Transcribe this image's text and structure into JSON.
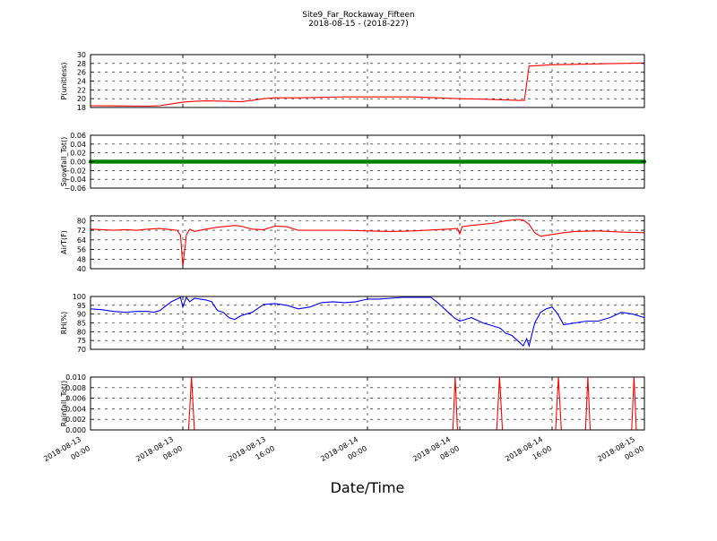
{
  "header": {
    "title": "Site9_Far_Rockaway_Fifteen",
    "subtitle": "2018-08-15 - (2018-227)"
  },
  "xaxis": {
    "label": "Date/Time",
    "ticks": [
      {
        "t": 0,
        "line1": "2018-08-13",
        "line2": "00:00"
      },
      {
        "t": 8,
        "line1": "2018-08-13",
        "line2": "08:00"
      },
      {
        "t": 16,
        "line1": "2018-08-13",
        "line2": "16:00"
      },
      {
        "t": 24,
        "line1": "2018-08-14",
        "line2": "00:00"
      },
      {
        "t": 32,
        "line1": "2018-08-14",
        "line2": "08:00"
      },
      {
        "t": 40,
        "line1": "2018-08-14",
        "line2": "16:00"
      },
      {
        "t": 48,
        "line1": "2018-08-15",
        "line2": "00:00"
      }
    ]
  },
  "chart_data": [
    {
      "type": "line",
      "ylabel": "P(unitless)",
      "ylim": [
        18,
        30
      ],
      "yticks": [
        "18",
        "20",
        "22",
        "24",
        "26",
        "28",
        "30"
      ],
      "ytick_values": [
        18,
        20,
        22,
        24,
        26,
        28,
        30
      ],
      "xlim_hours": [
        0,
        48
      ],
      "grid": true,
      "series": [
        {
          "color": "#ff0000",
          "x": [
            0,
            5,
            6,
            7,
            8,
            9,
            10,
            12,
            13,
            14,
            15,
            16,
            18,
            20,
            22,
            24,
            26,
            28,
            29,
            30,
            32,
            34,
            36,
            37,
            37.6,
            38,
            40,
            44,
            48
          ],
          "y": [
            18.4,
            18.3,
            18.4,
            18.8,
            19.2,
            19.4,
            19.5,
            19.4,
            19.3,
            19.6,
            20.0,
            20.2,
            20.2,
            20.3,
            20.4,
            20.4,
            20.4,
            20.4,
            20.3,
            20.2,
            20.0,
            19.9,
            19.7,
            19.6,
            19.6,
            27.4,
            27.7,
            27.9,
            28.1
          ]
        }
      ]
    },
    {
      "type": "scatter",
      "ylabel": "Snowfall_Tot()",
      "ylim": [
        -0.06,
        0.06
      ],
      "yticks": [
        "−0.06",
        "−0.04",
        "−0.02",
        "0.00",
        "0.02",
        "0.04",
        "0.06"
      ],
      "ytick_values": [
        -0.06,
        -0.04,
        -0.02,
        0,
        0.02,
        0.04,
        0.06
      ],
      "xlim_hours": [
        0,
        48
      ],
      "grid": true,
      "series": [
        {
          "color": "#008000",
          "x_start": 0,
          "x_end": 48,
          "x_step": 0.1,
          "constant_y": 0
        }
      ]
    },
    {
      "type": "line",
      "ylabel": "AirT(F)",
      "ylim": [
        40,
        84
      ],
      "yticks": [
        "40",
        "48",
        "56",
        "64",
        "72",
        "80"
      ],
      "ytick_values": [
        40,
        48,
        56,
        64,
        72,
        80
      ],
      "xlim_hours": [
        0,
        48
      ],
      "grid": true,
      "series": [
        {
          "color": "#ff0000",
          "x": [
            0,
            1,
            2,
            3,
            4,
            5,
            6,
            7,
            7.5,
            7.8,
            8.0,
            8.3,
            8.6,
            9,
            10,
            11,
            12,
            12.5,
            13,
            14,
            15,
            15.5,
            16,
            17,
            18,
            20,
            22,
            24,
            26,
            28,
            30,
            31,
            31.8,
            32,
            32.2,
            33,
            34,
            35,
            36,
            37,
            37.5,
            38,
            38.5,
            39,
            40,
            41,
            42,
            44,
            46,
            48
          ],
          "y": [
            73,
            72.5,
            72,
            72.5,
            72,
            73,
            73.5,
            72.5,
            72,
            68,
            42,
            68,
            73,
            71,
            73,
            74.5,
            75.5,
            76,
            75.5,
            73,
            72.5,
            74,
            75.5,
            75,
            72,
            72,
            72,
            71.5,
            71,
            71.5,
            72.5,
            73,
            73.5,
            69,
            75,
            76,
            77,
            78,
            80,
            81,
            80.5,
            77,
            70,
            67,
            68.5,
            70,
            71,
            71.5,
            70.5,
            70
          ]
        }
      ]
    },
    {
      "type": "line",
      "ylabel": "RH(%)",
      "ylim": [
        70,
        100
      ],
      "yticks": [
        "70",
        "75",
        "80",
        "85",
        "90",
        "95",
        "100"
      ],
      "ytick_values": [
        70,
        75,
        80,
        85,
        90,
        95,
        100
      ],
      "xlim_hours": [
        0,
        48
      ],
      "grid": true,
      "series": [
        {
          "color": "#0000ff",
          "x": [
            0,
            1,
            2,
            3,
            4,
            5,
            5.5,
            6,
            7,
            7.8,
            8.0,
            8.3,
            8.6,
            9,
            10,
            10.5,
            11,
            11.5,
            12,
            12.5,
            13,
            14,
            15,
            16,
            17,
            18,
            19,
            20,
            21,
            22,
            23,
            24,
            25,
            26,
            27,
            28,
            29,
            29.5,
            30,
            31,
            31.5,
            32,
            32.5,
            33,
            34,
            35,
            35.5,
            36,
            36.5,
            37,
            37.5,
            37.8,
            38,
            38.5,
            39,
            39.5,
            40,
            40.5,
            41,
            42,
            43,
            44,
            45,
            46,
            47,
            48
          ],
          "y": [
            93,
            92.5,
            91.5,
            91,
            91.5,
            91.5,
            91,
            92,
            97,
            99.5,
            94,
            99.5,
            97,
            99,
            98,
            97,
            92,
            91,
            88,
            87,
            89,
            91,
            95.5,
            96,
            95,
            93,
            94,
            96.5,
            97,
            96.5,
            97,
            98.5,
            98.5,
            99,
            99.5,
            99.5,
            99.5,
            99.5,
            97,
            91,
            88,
            86,
            87,
            88,
            85,
            83,
            82,
            79,
            78,
            75,
            72,
            76,
            72,
            85,
            91,
            93,
            94,
            90,
            84,
            85,
            86,
            86,
            88,
            91,
            90,
            88
          ]
        }
      ]
    },
    {
      "type": "line",
      "ylabel": "Rainfall_Tot()",
      "ylim": [
        0,
        0.01
      ],
      "yticks": [
        "0.000",
        "0.002",
        "0.004",
        "0.006",
        "0.008",
        "0.010"
      ],
      "ytick_values": [
        0,
        0.002,
        0.004,
        0.006,
        0.008,
        0.01
      ],
      "xlim_hours": [
        0,
        48
      ],
      "grid": true,
      "series": [
        {
          "color": "#ff0000",
          "x": [
            0,
            8.5,
            8.75,
            9.0,
            31.4,
            31.6,
            31.8,
            35.2,
            35.45,
            35.7,
            40.3,
            40.55,
            40.8,
            42.9,
            43.1,
            43.3,
            46.9,
            47.1,
            47.3,
            48
          ],
          "y": [
            0,
            0,
            0.01,
            0,
            0,
            0.01,
            0,
            0,
            0.01,
            0,
            0,
            0.01,
            0,
            0,
            0.01,
            0,
            0,
            0.01,
            0,
            0
          ]
        }
      ]
    }
  ]
}
